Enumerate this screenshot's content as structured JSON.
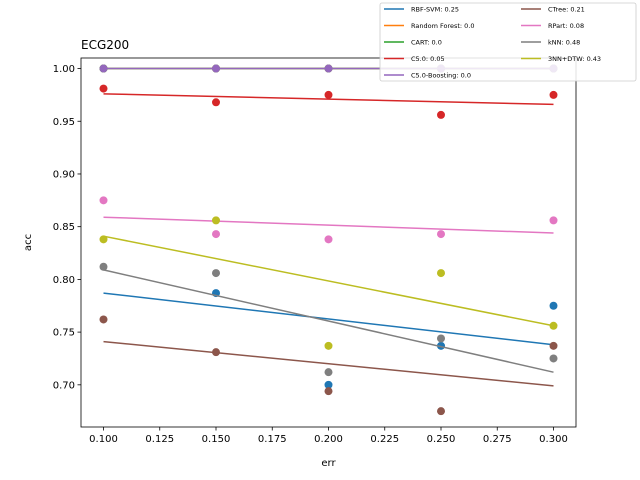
{
  "chart_data": {
    "type": "scatter",
    "title": "ECG200",
    "xlabel": "err",
    "ylabel": "acc",
    "xlim": [
      0.09,
      0.31
    ],
    "ylim": [
      0.66,
      1.01
    ],
    "xticks": [
      0.1,
      0.125,
      0.15,
      0.175,
      0.2,
      0.225,
      0.25,
      0.275,
      0.3
    ],
    "xtick_labels": [
      "0.100",
      "0.125",
      "0.150",
      "0.175",
      "0.200",
      "0.225",
      "0.250",
      "0.275",
      "0.300"
    ],
    "yticks": [
      0.7,
      0.75,
      0.8,
      0.85,
      0.9,
      0.95,
      1.0
    ],
    "ytick_labels": [
      "0.70",
      "0.75",
      "0.80",
      "0.85",
      "0.90",
      "0.95",
      "1.00"
    ],
    "grid": false,
    "legend_position": "top-right",
    "x": [
      0.1,
      0.15,
      0.2,
      0.25,
      0.3
    ],
    "series": [
      {
        "name": "RBF-SVM: 0.25",
        "color": "#1f77b4",
        "values": [
          1.0,
          0.787,
          0.7,
          0.737,
          0.775
        ],
        "fit": [
          0.787,
          0.738
        ]
      },
      {
        "name": "Random Forest: 0.0",
        "color": "#ff7f0e",
        "values": [
          1.0,
          1.0,
          1.0,
          1.0,
          1.0
        ],
        "fit": [
          1.0,
          1.0
        ]
      },
      {
        "name": "CART: 0.0",
        "color": "#2ca02c",
        "values": [
          1.0,
          1.0,
          1.0,
          1.0,
          1.0
        ],
        "fit": [
          1.0,
          1.0
        ]
      },
      {
        "name": "C5.0: 0.05",
        "color": "#d62728",
        "values": [
          0.981,
          0.968,
          0.975,
          0.956,
          0.975
        ],
        "fit": [
          0.976,
          0.966
        ]
      },
      {
        "name": "C5.0-Boosting: 0.0",
        "color": "#9467bd",
        "values": [
          1.0,
          1.0,
          1.0,
          1.0,
          1.0
        ],
        "fit": [
          1.0,
          1.0
        ]
      },
      {
        "name": "CTree: 0.21",
        "color": "#8c564b",
        "values": [
          0.762,
          0.731,
          0.694,
          0.675,
          0.737
        ],
        "fit": [
          0.741,
          0.699
        ]
      },
      {
        "name": "RPart: 0.08",
        "color": "#e377c2",
        "values": [
          0.875,
          0.843,
          0.838,
          0.843,
          0.856
        ],
        "fit": [
          0.859,
          0.844
        ]
      },
      {
        "name": "kNN: 0.48",
        "color": "#7f7f7f",
        "values": [
          0.812,
          0.806,
          0.712,
          0.744,
          0.725
        ],
        "fit": [
          0.809,
          0.712
        ]
      },
      {
        "name": "3NN+DTW: 0.43",
        "color": "#bcbd22",
        "values": [
          0.838,
          0.856,
          0.737,
          0.806,
          0.756
        ],
        "fit": [
          0.841,
          0.756
        ]
      }
    ]
  }
}
